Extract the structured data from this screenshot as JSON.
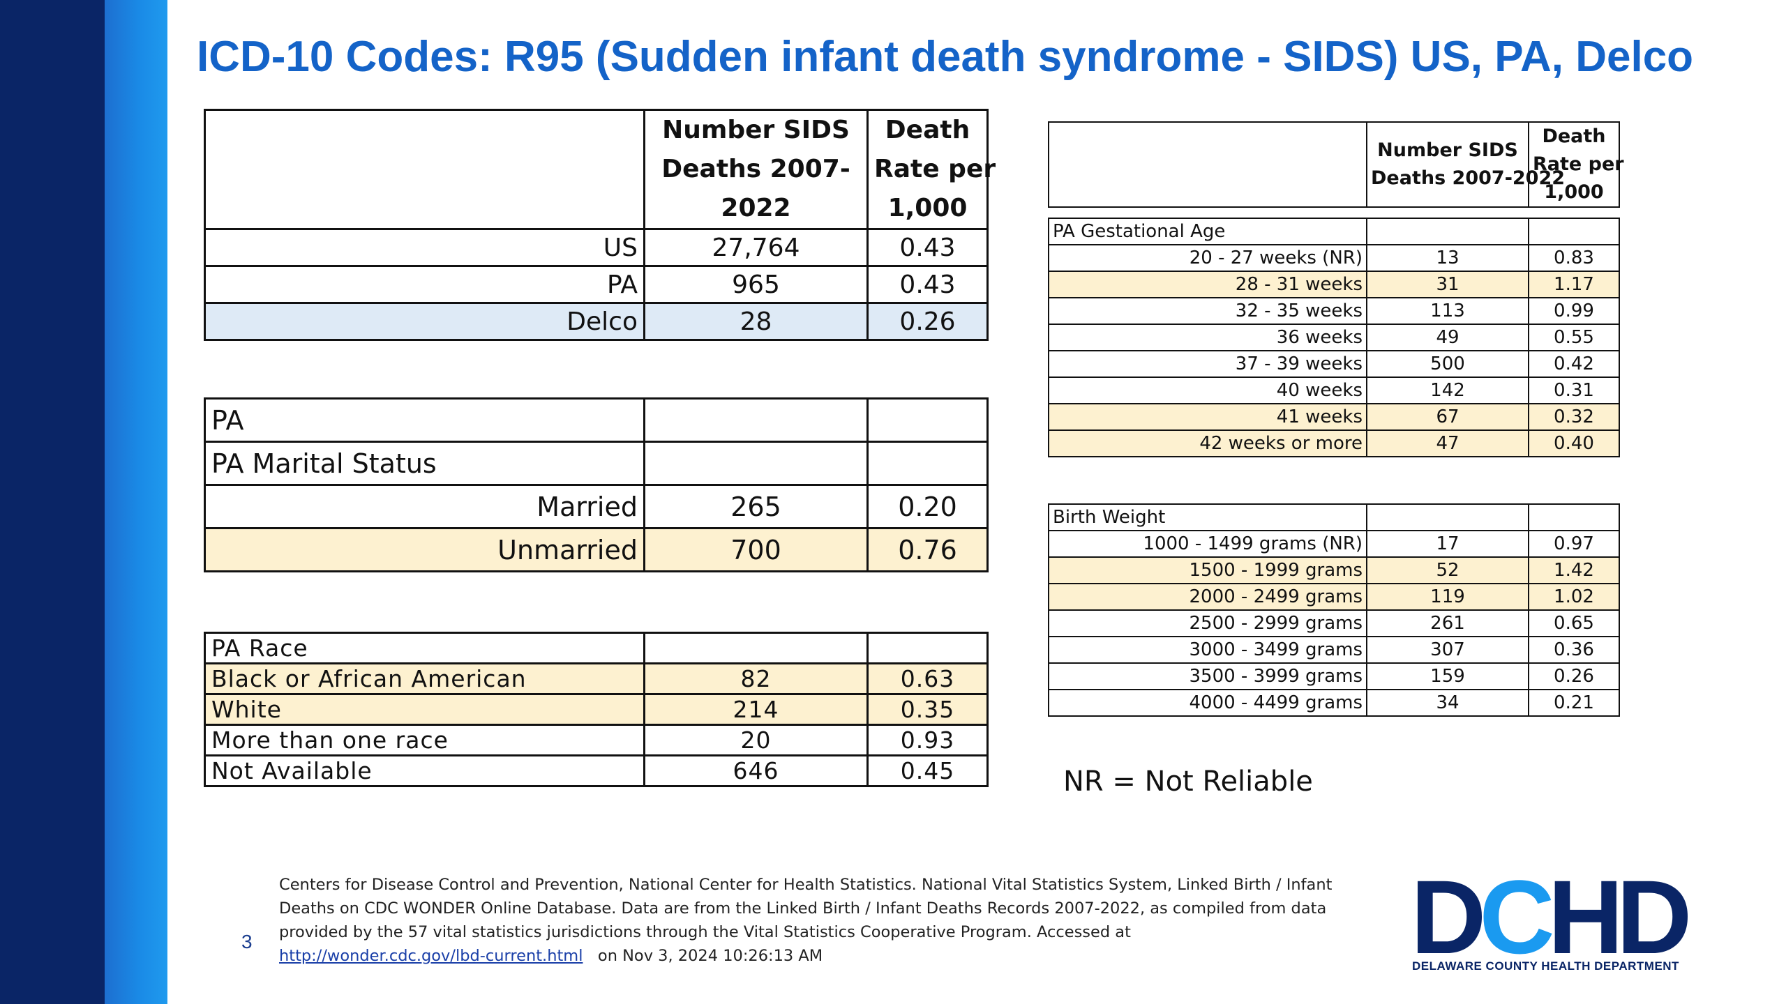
{
  "slide": {
    "title": "ICD-10 Codes: R95 (Sudden infant death syndrome - SIDS) US, PA, Delco",
    "slide_number": "3",
    "nr_note": "NR = Not Reliable",
    "colors": {
      "title": "#1463c8",
      "highlight_yellow": "#fdf1d0",
      "highlight_blue": "#deeaf6",
      "band_dark": "#0a2566",
      "band_light": "#1a8ae6"
    }
  },
  "table_summary": {
    "header": {
      "col_count": "Number SIDS Deaths 2007-2022",
      "col_rate_line1": "Death",
      "col_rate_line2": "Rate per",
      "col_rate_line3": "1,000"
    },
    "rows": [
      {
        "label": "US",
        "count": "27,764",
        "rate": "0.43"
      },
      {
        "label": "PA",
        "count": "965",
        "rate": "0.43"
      },
      {
        "label": "Delco",
        "count": "28",
        "rate": "0.26"
      }
    ]
  },
  "table_marital": {
    "row_pa": "PA",
    "row_group": "PA Marital Status",
    "rows": [
      {
        "label": "Married",
        "count": "265",
        "rate": "0.20"
      },
      {
        "label": "Unmarried",
        "count": "700",
        "rate": "0.76"
      }
    ]
  },
  "table_race": {
    "group": "PA Race",
    "rows": [
      {
        "label": "Black or African American",
        "count": "82",
        "rate": "0.63"
      },
      {
        "label": "White",
        "count": "214",
        "rate": "0.35"
      },
      {
        "label": "More than one race",
        "count": "20",
        "rate": "0.93"
      },
      {
        "label": "Not Available",
        "count": "646",
        "rate": "0.45"
      }
    ]
  },
  "table_gestational": {
    "header": {
      "col_count_line1": "Number SIDS",
      "col_count_line2": "Deaths 2007-2022",
      "col_rate_line1": "Death",
      "col_rate_line2": "Rate per",
      "col_rate_line3": "1,000"
    },
    "group": "PA  Gestational Age",
    "rows": [
      {
        "label": "20 - 27 weeks (NR)",
        "count": "13",
        "rate": "0.83"
      },
      {
        "label": "28 - 31 weeks",
        "count": "31",
        "rate": "1.17"
      },
      {
        "label": "32 - 35 weeks",
        "count": "113",
        "rate": "0.99"
      },
      {
        "label": "36 weeks",
        "count": "49",
        "rate": "0.55"
      },
      {
        "label": "37 - 39 weeks",
        "count": "500",
        "rate": "0.42"
      },
      {
        "label": "40 weeks",
        "count": "142",
        "rate": "0.31"
      },
      {
        "label": "41 weeks",
        "count": "67",
        "rate": "0.32"
      },
      {
        "label": "42 weeks or more",
        "count": "47",
        "rate": "0.40"
      }
    ]
  },
  "table_birthweight": {
    "group": "Birth Weight",
    "rows": [
      {
        "label": "1000 - 1499 grams (NR)",
        "count": "17",
        "rate": "0.97"
      },
      {
        "label": "1500 - 1999 grams",
        "count": "52",
        "rate": "1.42"
      },
      {
        "label": "2000 - 2499 grams",
        "count": "119",
        "rate": "1.02"
      },
      {
        "label": "2500 - 2999 grams",
        "count": "261",
        "rate": "0.65"
      },
      {
        "label": "3000 - 3499 grams",
        "count": "307",
        "rate": "0.36"
      },
      {
        "label": "3500 - 3999 grams",
        "count": "159",
        "rate": "0.26"
      },
      {
        "label": "4000 - 4499 grams",
        "count": "34",
        "rate": "0.21"
      }
    ]
  },
  "footnote": {
    "text_line1": "Centers for Disease Control and Prevention, National Center for Health Statistics. National Vital Statistics System, Linked Birth / Infant",
    "text_line2": "Deaths on CDC WONDER Online Database. Data are from the Linked Birth / Infant Deaths Records 2007-2022, as compiled from data",
    "text_line3": "provided by the 57 vital statistics jurisdictions through the Vital Statistics Cooperative Program. Accessed at",
    "link": "http://wonder.cdc.gov/lbd-current.html",
    "accessed": "on Nov 3, 2024 10:26:13 AM"
  },
  "logo": {
    "letters_dark_1": "D",
    "letters_light": "C",
    "letters_dark_2": "HD",
    "subtitle": "DELAWARE COUNTY HEALTH DEPARTMENT"
  }
}
